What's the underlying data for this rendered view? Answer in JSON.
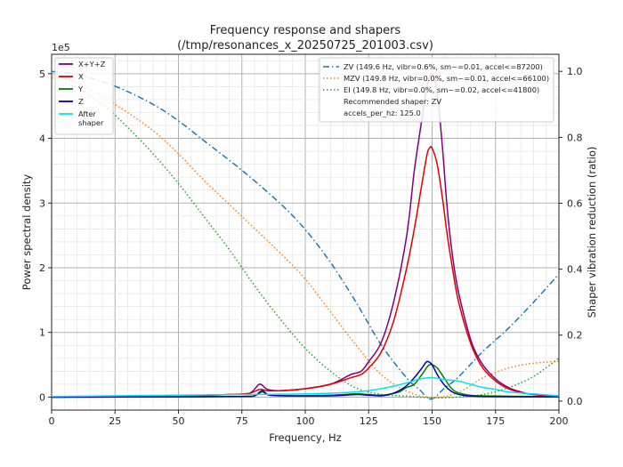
{
  "chart_data": {
    "type": "line",
    "title": "Frequency response and shapers",
    "subtitle": "(/tmp/resonances_x_20250725_201003.csv)",
    "xlabel": "Frequency, Hz",
    "ylabel": "Power spectral density",
    "y2label": "Shaper vibration reduction (ratio)",
    "xlim": [
      0,
      200
    ],
    "ylim": [
      -0.2,
      5.3
    ],
    "y2lim": [
      -0.0273,
      1.0518
    ],
    "y_scale_label": "1e5",
    "xticks": [
      "0",
      "25",
      "50",
      "75",
      "100",
      "125",
      "150",
      "175",
      "200"
    ],
    "yticks": [
      "0",
      "1",
      "2",
      "3",
      "4",
      "5"
    ],
    "y2ticks": [
      "0.0",
      "0.2",
      "0.4",
      "0.6",
      "0.8",
      "1.0"
    ],
    "psd_series": [
      {
        "name": "X+Y+Z",
        "color": "#800080",
        "points": [
          [
            0,
            0
          ],
          [
            25,
            0.01
          ],
          [
            50,
            0.02
          ],
          [
            70,
            0.04
          ],
          [
            78,
            0.06
          ],
          [
            82,
            0.2
          ],
          [
            85,
            0.12
          ],
          [
            90,
            0.1
          ],
          [
            100,
            0.13
          ],
          [
            110,
            0.2
          ],
          [
            118,
            0.35
          ],
          [
            122,
            0.4
          ],
          [
            125,
            0.55
          ],
          [
            130,
            0.85
          ],
          [
            135,
            1.5
          ],
          [
            140,
            2.5
          ],
          [
            143,
            3.5
          ],
          [
            146,
            4.3
          ],
          [
            148,
            4.8
          ],
          [
            150,
            5.0
          ],
          [
            152,
            4.7
          ],
          [
            154,
            3.9
          ],
          [
            156,
            2.9
          ],
          [
            158,
            2.2
          ],
          [
            160,
            1.7
          ],
          [
            163,
            1.2
          ],
          [
            166,
            0.8
          ],
          [
            170,
            0.5
          ],
          [
            175,
            0.28
          ],
          [
            180,
            0.15
          ],
          [
            185,
            0.08
          ],
          [
            190,
            0.04
          ],
          [
            200,
            0.02
          ]
        ]
      },
      {
        "name": "X",
        "color": "#e00000",
        "points": [
          [
            0,
            0
          ],
          [
            25,
            0.01
          ],
          [
            50,
            0.02
          ],
          [
            70,
            0.04
          ],
          [
            78,
            0.06
          ],
          [
            82,
            0.12
          ],
          [
            85,
            0.1
          ],
          [
            90,
            0.1
          ],
          [
            100,
            0.13
          ],
          [
            110,
            0.2
          ],
          [
            118,
            0.3
          ],
          [
            122,
            0.35
          ],
          [
            125,
            0.45
          ],
          [
            130,
            0.7
          ],
          [
            135,
            1.2
          ],
          [
            140,
            2.0
          ],
          [
            143,
            2.6
          ],
          [
            146,
            3.3
          ],
          [
            148,
            3.75
          ],
          [
            149,
            3.85
          ],
          [
            150,
            3.85
          ],
          [
            152,
            3.6
          ],
          [
            154,
            3.1
          ],
          [
            156,
            2.5
          ],
          [
            158,
            2.0
          ],
          [
            160,
            1.55
          ],
          [
            163,
            1.1
          ],
          [
            166,
            0.75
          ],
          [
            170,
            0.45
          ],
          [
            175,
            0.25
          ],
          [
            180,
            0.13
          ],
          [
            185,
            0.07
          ],
          [
            190,
            0.04
          ],
          [
            200,
            0.01
          ]
        ]
      },
      {
        "name": "Y",
        "color": "#008000",
        "points": [
          [
            0,
            0
          ],
          [
            50,
            0.005
          ],
          [
            75,
            0.01
          ],
          [
            80,
            0.02
          ],
          [
            83,
            0.08
          ],
          [
            86,
            0.03
          ],
          [
            95,
            0.02
          ],
          [
            110,
            0.03
          ],
          [
            120,
            0.05
          ],
          [
            125,
            0.04
          ],
          [
            130,
            0.03
          ],
          [
            134,
            0.05
          ],
          [
            137,
            0.08
          ],
          [
            140,
            0.15
          ],
          [
            143,
            0.2
          ],
          [
            146,
            0.35
          ],
          [
            149,
            0.5
          ],
          [
            152,
            0.45
          ],
          [
            155,
            0.28
          ],
          [
            158,
            0.12
          ],
          [
            162,
            0.05
          ],
          [
            170,
            0.02
          ],
          [
            200,
            0.005
          ]
        ]
      },
      {
        "name": "Z",
        "color": "#0000b0",
        "points": [
          [
            0,
            0
          ],
          [
            50,
            0.005
          ],
          [
            75,
            0.01
          ],
          [
            80,
            0.02
          ],
          [
            83,
            0.1
          ],
          [
            86,
            0.03
          ],
          [
            95,
            0.02
          ],
          [
            110,
            0.02
          ],
          [
            120,
            0.04
          ],
          [
            125,
            0.03
          ],
          [
            130,
            0.02
          ],
          [
            134,
            0.05
          ],
          [
            137,
            0.1
          ],
          [
            140,
            0.18
          ],
          [
            143,
            0.3
          ],
          [
            146,
            0.45
          ],
          [
            148,
            0.55
          ],
          [
            150,
            0.5
          ],
          [
            152,
            0.35
          ],
          [
            155,
            0.18
          ],
          [
            158,
            0.08
          ],
          [
            162,
            0.03
          ],
          [
            170,
            0.01
          ],
          [
            200,
            0.005
          ]
        ]
      },
      {
        "name": "After\nshaper",
        "color": "#00e5ee",
        "points": [
          [
            0,
            0.01
          ],
          [
            25,
            0.02
          ],
          [
            50,
            0.03
          ],
          [
            75,
            0.04
          ],
          [
            100,
            0.05
          ],
          [
            120,
            0.08
          ],
          [
            130,
            0.13
          ],
          [
            140,
            0.22
          ],
          [
            145,
            0.28
          ],
          [
            150,
            0.3
          ],
          [
            155,
            0.27
          ],
          [
            160,
            0.25
          ],
          [
            165,
            0.2
          ],
          [
            170,
            0.15
          ],
          [
            175,
            0.12
          ],
          [
            180,
            0.08
          ],
          [
            190,
            0.05
          ],
          [
            200,
            0.02
          ]
        ]
      }
    ],
    "shapers": [
      {
        "name": "ZV (149.6 Hz, vibr=0.6%, sm~=0.01, accel<=87200)",
        "color": "#1f77b4",
        "style": "dashdot",
        "points": [
          [
            0,
            1.0
          ],
          [
            10,
            0.99
          ],
          [
            25,
            0.955
          ],
          [
            40,
            0.9
          ],
          [
            50,
            0.85
          ],
          [
            60,
            0.79
          ],
          [
            75,
            0.7
          ],
          [
            90,
            0.6
          ],
          [
            100,
            0.52
          ],
          [
            110,
            0.42
          ],
          [
            120,
            0.3
          ],
          [
            130,
            0.17
          ],
          [
            140,
            0.07
          ],
          [
            145,
            0.035
          ],
          [
            149.6,
            0.006
          ],
          [
            155,
            0.04
          ],
          [
            160,
            0.07
          ],
          [
            170,
            0.15
          ],
          [
            180,
            0.22
          ],
          [
            190,
            0.3
          ],
          [
            200,
            0.385
          ]
        ]
      },
      {
        "name": "MZV (149.8 Hz, vibr=0.0%, sm~=0.01, accel<=66100)",
        "color": "#ff7f0e",
        "style": "dotted",
        "points": [
          [
            0,
            0.99
          ],
          [
            10,
            0.965
          ],
          [
            25,
            0.9
          ],
          [
            40,
            0.82
          ],
          [
            50,
            0.75
          ],
          [
            60,
            0.67
          ],
          [
            75,
            0.56
          ],
          [
            90,
            0.45
          ],
          [
            100,
            0.37
          ],
          [
            110,
            0.27
          ],
          [
            120,
            0.17
          ],
          [
            130,
            0.08
          ],
          [
            140,
            0.03
          ],
          [
            150,
            0.01
          ],
          [
            160,
            0.025
          ],
          [
            170,
            0.07
          ],
          [
            180,
            0.1
          ],
          [
            190,
            0.115
          ],
          [
            200,
            0.12
          ]
        ]
      },
      {
        "name": "EI (149.8 Hz, vibr=0.0%, sm~=0.02, accel<=41800)",
        "color": "#2ca02c",
        "style": "dotted",
        "points": [
          [
            0,
            0.98
          ],
          [
            10,
            0.95
          ],
          [
            20,
            0.9
          ],
          [
            30,
            0.83
          ],
          [
            40,
            0.75
          ],
          [
            50,
            0.66
          ],
          [
            60,
            0.56
          ],
          [
            70,
            0.46
          ],
          [
            80,
            0.35
          ],
          [
            90,
            0.25
          ],
          [
            100,
            0.16
          ],
          [
            110,
            0.09
          ],
          [
            120,
            0.04
          ],
          [
            130,
            0.02
          ],
          [
            140,
            0.015
          ],
          [
            150,
            0.01
          ],
          [
            160,
            0.012
          ],
          [
            170,
            0.02
          ],
          [
            180,
            0.04
          ],
          [
            190,
            0.075
          ],
          [
            200,
            0.13
          ]
        ]
      }
    ],
    "recommended": "Recommended shaper: ZV",
    "accels_per_hz": "accels_per_hz: 125.0",
    "legend_left_placement": "top-left",
    "legend_right_placement": "top-right"
  }
}
